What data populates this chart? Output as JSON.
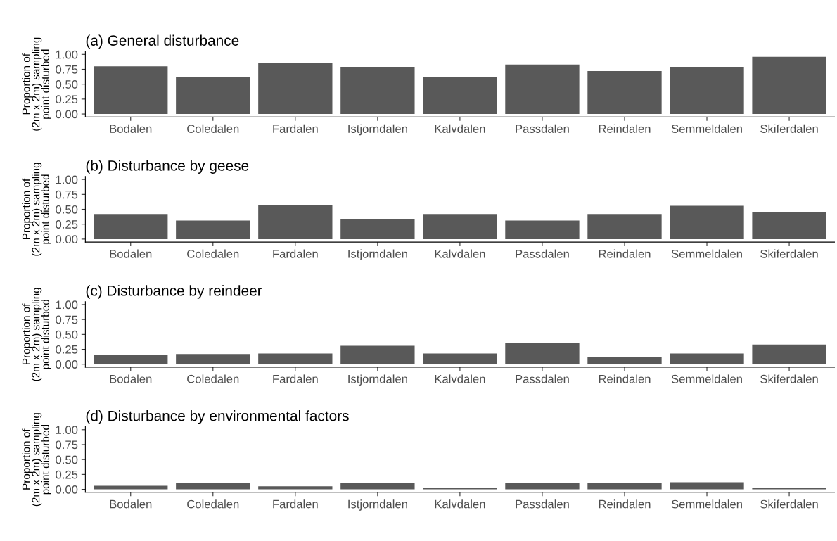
{
  "chart_data": [
    {
      "type": "bar",
      "title": "(a) General disturbance",
      "ylabel": "Proportion of\n(2m x 2m) sampling\npoint disturbed",
      "categories": [
        "Bodalen",
        "Coledalen",
        "Fardalen",
        "Istjorndalen",
        "Kalvdalen",
        "Passdalen",
        "Reindalen",
        "Semmeldalen",
        "Skiferdalen"
      ],
      "values": [
        0.8,
        0.62,
        0.86,
        0.79,
        0.62,
        0.83,
        0.72,
        0.79,
        0.96
      ],
      "color": "#595959",
      "ylim": [
        -0.05,
        1.05
      ],
      "yticks": [
        {
          "value": 0,
          "label": "0.00"
        },
        {
          "value": 0.25,
          "label": "0.25"
        },
        {
          "value": 0.5,
          "label": "0.50"
        },
        {
          "value": 0.75,
          "label": "0.75"
        },
        {
          "value": 1,
          "label": "1.00"
        }
      ],
      "grid": false
    },
    {
      "type": "bar",
      "title": "(b) Disturbance by geese",
      "ylabel": "Proportion of\n(2m x 2m) sampling\npoint disturbed",
      "categories": [
        "Bodalen",
        "Coledalen",
        "Fardalen",
        "Istjorndalen",
        "Kalvdalen",
        "Passdalen",
        "Reindalen",
        "Semmeldalen",
        "Skiferdalen"
      ],
      "values": [
        0.42,
        0.31,
        0.57,
        0.33,
        0.42,
        0.31,
        0.42,
        0.56,
        0.46
      ],
      "color": "#595959",
      "ylim": [
        -0.05,
        1.05
      ],
      "yticks": [
        {
          "value": 0,
          "label": "0.00"
        },
        {
          "value": 0.25,
          "label": "0.25"
        },
        {
          "value": 0.5,
          "label": "0.50"
        },
        {
          "value": 0.75,
          "label": "0.75"
        },
        {
          "value": 1,
          "label": "1.00"
        }
      ],
      "grid": false
    },
    {
      "type": "bar",
      "title": "(c) Disturbance by reindeer",
      "ylabel": "Proportion of\n(2m x 2m) sampling\npoint disturbed",
      "categories": [
        "Bodalen",
        "Coledalen",
        "Fardalen",
        "Istjorndalen",
        "Kalvdalen",
        "Passdalen",
        "Reindalen",
        "Semmeldalen",
        "Skiferdalen"
      ],
      "values": [
        0.15,
        0.17,
        0.18,
        0.31,
        0.18,
        0.36,
        0.12,
        0.18,
        0.33
      ],
      "color": "#595959",
      "ylim": [
        -0.05,
        1.05
      ],
      "yticks": [
        {
          "value": 0,
          "label": "0.00"
        },
        {
          "value": 0.25,
          "label": "0.25"
        },
        {
          "value": 0.5,
          "label": "0.50"
        },
        {
          "value": 0.75,
          "label": "0.75"
        },
        {
          "value": 1,
          "label": "1.00"
        }
      ],
      "grid": false
    },
    {
      "type": "bar",
      "title": "(d) Disturbance by environmental factors",
      "ylabel": "Proportion of\n(2m x 2m) sampling\npoint disturbed",
      "categories": [
        "Bodalen",
        "Coledalen",
        "Fardalen",
        "Istjorndalen",
        "Kalvdalen",
        "Passdalen",
        "Reindalen",
        "Semmeldalen",
        "Skiferdalen"
      ],
      "values": [
        0.06,
        0.1,
        0.05,
        0.1,
        0.03,
        0.1,
        0.1,
        0.12,
        0.03
      ],
      "color": "#595959",
      "ylim": [
        -0.05,
        1.05
      ],
      "yticks": [
        {
          "value": 0,
          "label": "0.00"
        },
        {
          "value": 0.25,
          "label": "0.25"
        },
        {
          "value": 0.5,
          "label": "0.50"
        },
        {
          "value": 0.75,
          "label": "0.75"
        },
        {
          "value": 1,
          "label": "1.00"
        }
      ],
      "grid": false
    }
  ]
}
